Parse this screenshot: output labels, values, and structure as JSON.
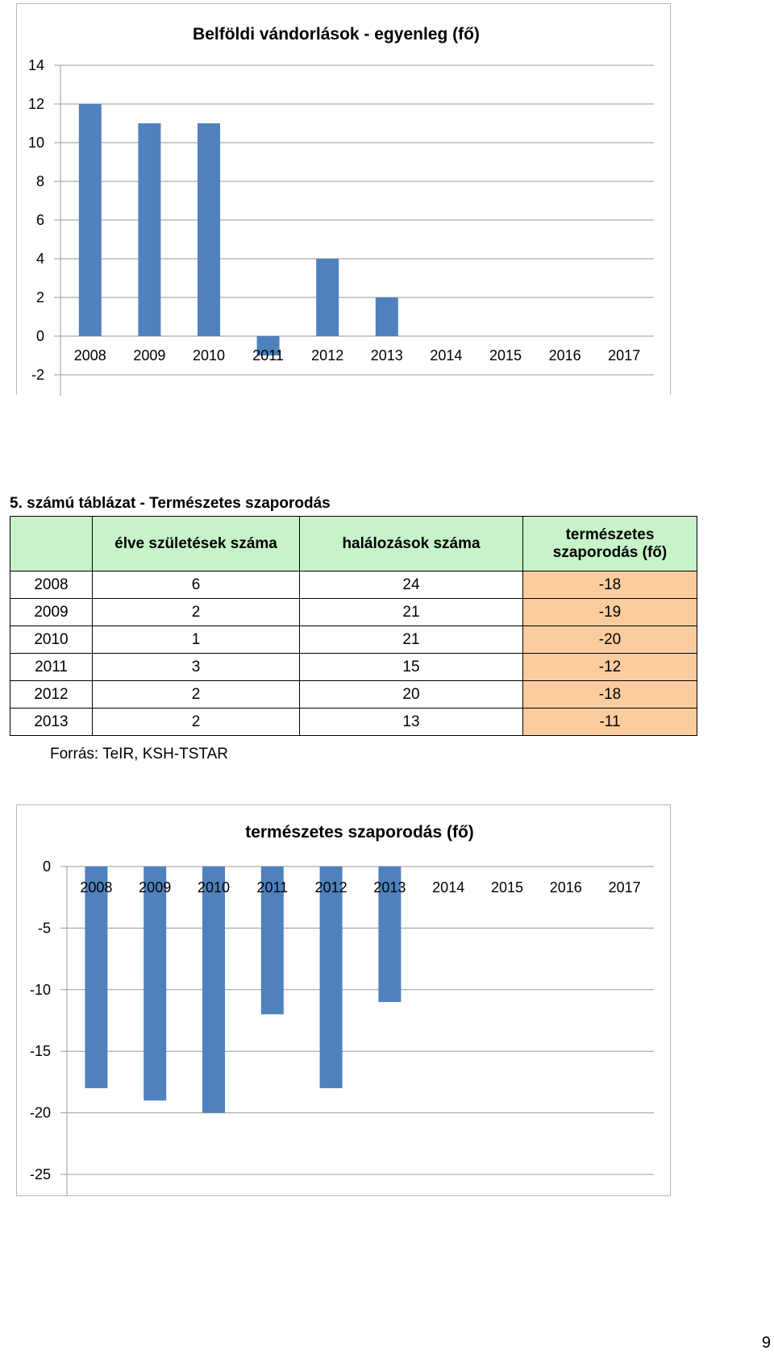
{
  "chart_data": [
    {
      "type": "bar",
      "title": "Belföldi vándorlások - egyenleg (fő)",
      "categories": [
        "2008",
        "2009",
        "2010",
        "2011",
        "2012",
        "2013",
        "2014",
        "2015",
        "2016",
        "2017"
      ],
      "values": [
        12,
        11,
        11,
        -1,
        4,
        2,
        null,
        null,
        null,
        null
      ],
      "ylim": [
        -2,
        14
      ],
      "yticks": [
        14,
        12,
        10,
        8,
        6,
        4,
        2,
        0,
        -2
      ],
      "grid": true,
      "bar_color": "#4f81bd"
    },
    {
      "type": "bar",
      "title": "természetes szaporodás (fő)",
      "categories": [
        "2008",
        "2009",
        "2010",
        "2011",
        "2012",
        "2013",
        "2014",
        "2015",
        "2016",
        "2017"
      ],
      "values": [
        -18,
        -19,
        -20,
        -12,
        -18,
        -11,
        null,
        null,
        null,
        null
      ],
      "ylim": [
        -25,
        0
      ],
      "yticks": [
        0,
        -5,
        -10,
        -15,
        -20,
        -25
      ],
      "grid": true,
      "bar_color": "#4f81bd"
    }
  ],
  "table": {
    "title": "5. számú táblázat - Természetes szaporodás",
    "headers": [
      "",
      "élve születések száma",
      "halálozások száma",
      "természetes szaporodás (fő)"
    ],
    "rows": [
      [
        "2008",
        "6",
        "24",
        "-18"
      ],
      [
        "2009",
        "2",
        "21",
        "-19"
      ],
      [
        "2010",
        "1",
        "21",
        "-20"
      ],
      [
        "2011",
        "3",
        "15",
        "-12"
      ],
      [
        "2012",
        "2",
        "20",
        "-18"
      ],
      [
        "2013",
        "2",
        "13",
        "-11"
      ]
    ],
    "source": "Forrás: TeIR, KSH-TSTAR"
  },
  "page_number": "9",
  "colors": {
    "bar": "#4f81bd",
    "header_bg": "#c6f3c8",
    "highlight_bg": "#fbcd9e"
  }
}
